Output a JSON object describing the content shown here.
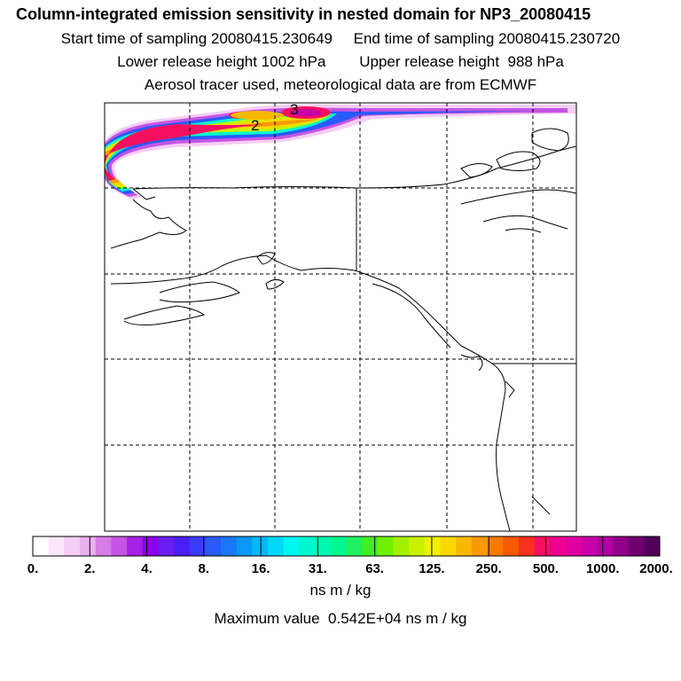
{
  "header": {
    "title": "Column-integrated emission sensitivity in nested domain for NP3_20080415",
    "line2": "Start time of sampling 20080415.230649     End time of sampling 20080415.230720",
    "line3": "Lower release height 1002 hPa        Upper release height  988 hPa",
    "line4": "Aerosol tracer used, meteorological data are from ECMWF"
  },
  "map": {
    "plume_labels": [
      "2",
      "3"
    ]
  },
  "colorbar": {
    "tick_labels": [
      "0.",
      "2.",
      "4.",
      "8.",
      "16.",
      "31.",
      "63.",
      "125.",
      "250.",
      "500.",
      "1000.",
      "2000."
    ],
    "colors": [
      "#ffffff",
      "#fbe6fb",
      "#f4ccf4",
      "#eab0f0",
      "#d87ce6",
      "#c455e4",
      "#a822e6",
      "#8a00f0",
      "#6a1ef0",
      "#4b1ef8",
      "#3a3cf8",
      "#2a5af8",
      "#1a78f8",
      "#0a98f8",
      "#00b8f8",
      "#00d8f8",
      "#00f8f0",
      "#00f8d0",
      "#00f8b0",
      "#00f890",
      "#20f060",
      "#40f020",
      "#70f000",
      "#a0f000",
      "#c8f000",
      "#f0f000",
      "#f8d800",
      "#f8b800",
      "#f89a00",
      "#f87a00",
      "#f85a00",
      "#f83020",
      "#f81060",
      "#f00090",
      "#e000a0",
      "#c800a8",
      "#b000a0",
      "#900088",
      "#700070",
      "#500058"
    ],
    "unit": "ns m / kg",
    "max_value_text": "Maximum value  0.542E+04 ns m / kg"
  }
}
